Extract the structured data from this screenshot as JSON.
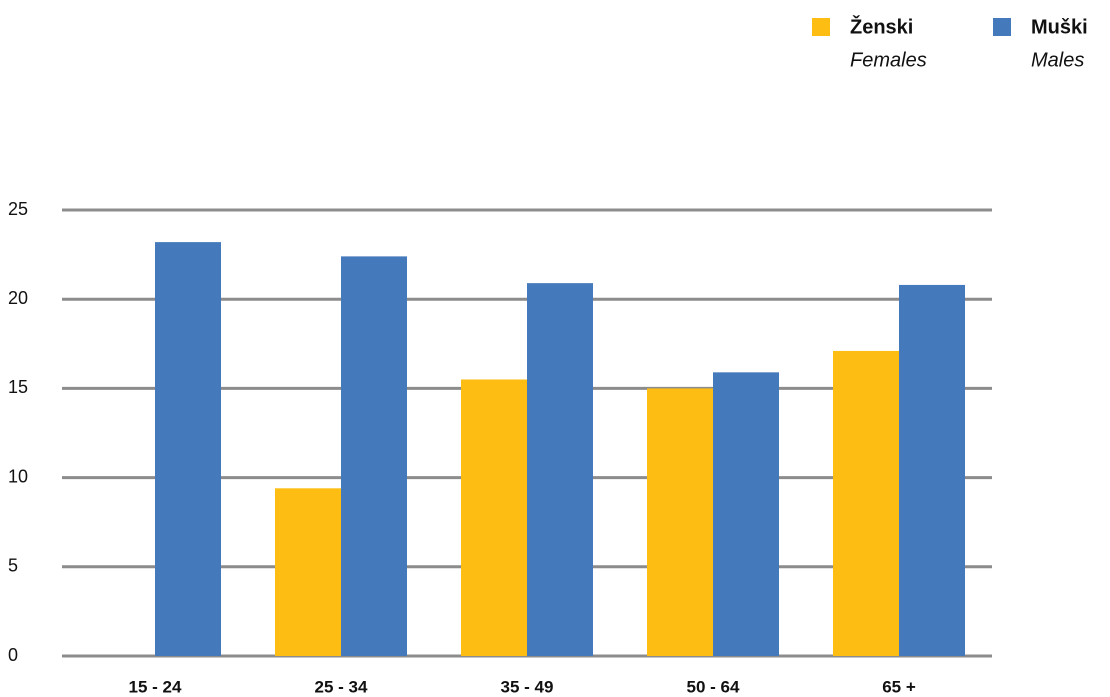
{
  "chart_data": {
    "type": "bar",
    "categories": [
      "15 - 24",
      "25 - 34",
      "35 - 49",
      "50 - 64",
      "65 +"
    ],
    "series": [
      {
        "name": "Ženski",
        "name_en": "Females",
        "color": "#fdbd13",
        "values": [
          null,
          9.4,
          15.5,
          15.0,
          17.1
        ]
      },
      {
        "name": "Muški",
        "name_en": "Males",
        "color": "#4479bb",
        "values": [
          23.2,
          22.4,
          20.9,
          15.9,
          20.8
        ]
      }
    ],
    "ylim": [
      0,
      25
    ],
    "yticks": [
      0,
      5,
      10,
      15,
      20,
      25
    ],
    "grid": true,
    "legend": "top-right"
  }
}
